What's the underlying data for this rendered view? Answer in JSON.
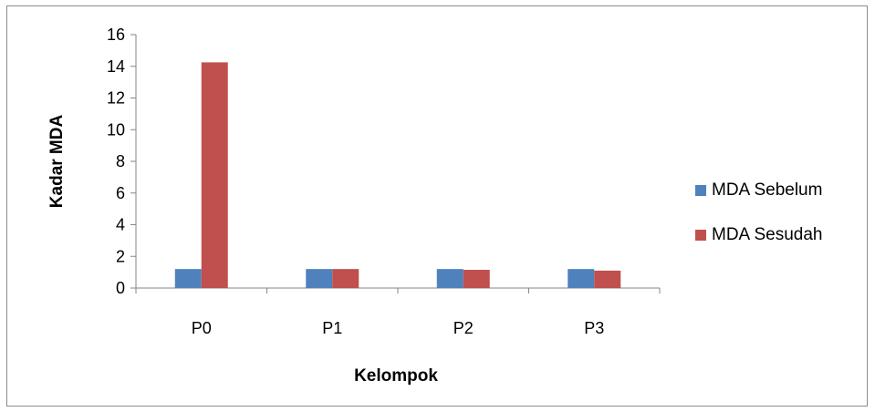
{
  "chart_data": {
    "type": "bar",
    "categories": [
      "P0",
      "P1",
      "P2",
      "P3"
    ],
    "series": [
      {
        "name": "MDA Sebelum",
        "values": [
          1.2,
          1.2,
          1.2,
          1.2
        ],
        "color": "#4f81bd"
      },
      {
        "name": "MDA Sesudah",
        "values": [
          14.25,
          1.2,
          1.15,
          1.1
        ],
        "color": "#c0504d"
      }
    ],
    "title": "",
    "xlabel": "Kelompok",
    "ylabel": "Kadar MDA",
    "ylim": [
      0,
      16
    ],
    "yticks": [
      0,
      2,
      4,
      6,
      8,
      10,
      12,
      14,
      16
    ],
    "grid": false,
    "legend_position": "right"
  }
}
